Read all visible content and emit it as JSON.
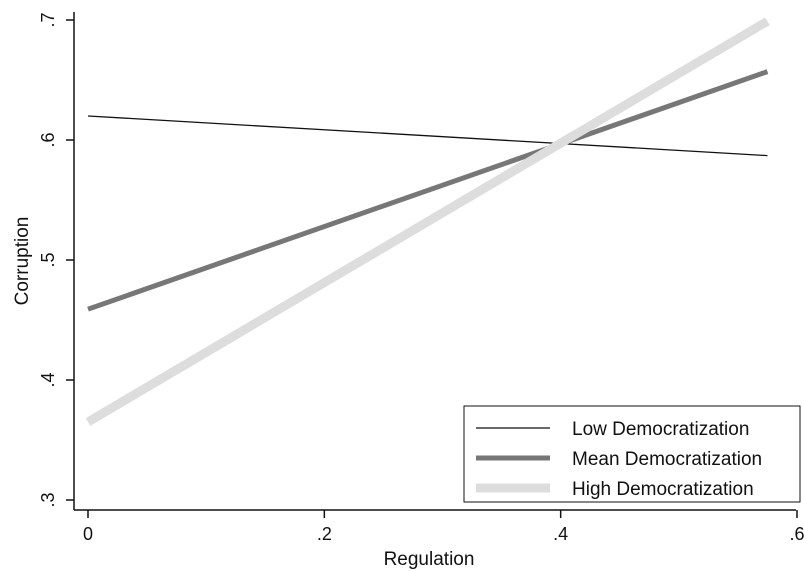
{
  "chart_data": {
    "type": "line",
    "title": "",
    "xlabel": "Regulation",
    "ylabel": "Corruption",
    "xlim": [
      0,
      0.6
    ],
    "ylim": [
      0.3,
      0.7
    ],
    "x_ticks": [
      {
        "value": 0,
        "label": "0"
      },
      {
        "value": 0.2,
        "label": ".2"
      },
      {
        "value": 0.4,
        "label": ".4"
      },
      {
        "value": 0.6,
        "label": ".6"
      }
    ],
    "y_ticks": [
      {
        "value": 0.3,
        "label": ".3"
      },
      {
        "value": 0.4,
        "label": ".4"
      },
      {
        "value": 0.5,
        "label": ".5"
      },
      {
        "value": 0.6,
        "label": ".6"
      },
      {
        "value": 0.7,
        "label": ".7"
      }
    ],
    "grid": false,
    "legend_position": "bottom-right",
    "series": [
      {
        "name": "Low Democratization",
        "x": [
          0,
          0.575
        ],
        "y": [
          0.62,
          0.587
        ],
        "color": "#111111",
        "line": "thin"
      },
      {
        "name": "Mean Democratization",
        "x": [
          0,
          0.575
        ],
        "y": [
          0.459,
          0.657
        ],
        "color": "#777777",
        "line": "medium"
      },
      {
        "name": "High Democratization",
        "x": [
          0,
          0.575
        ],
        "y": [
          0.365,
          0.699
        ],
        "color": "#dddddd",
        "line": "thick"
      }
    ]
  }
}
